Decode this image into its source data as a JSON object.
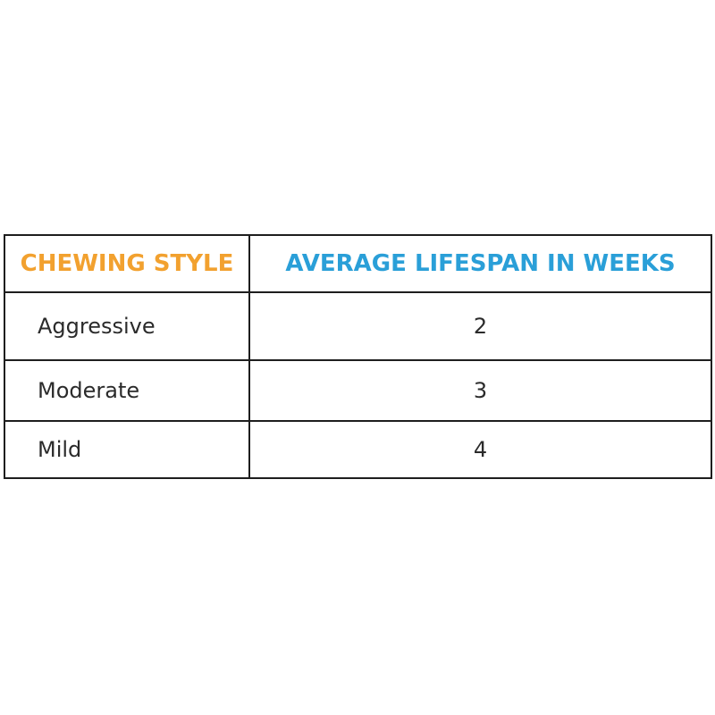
{
  "table": {
    "headers": {
      "col1": "CHEWING STYLE",
      "col2": "AVERAGE LIFESPAN IN WEEKS"
    },
    "rows": [
      {
        "style": "Aggressive",
        "weeks": "2"
      },
      {
        "style": "Moderate",
        "weeks": "3"
      },
      {
        "style": "Mild",
        "weeks": "4"
      }
    ]
  },
  "colors": {
    "header_col1": "#f2a12f",
    "header_col2": "#2a9fd8",
    "border": "#1e1e1e",
    "text": "#2b2b2b"
  }
}
